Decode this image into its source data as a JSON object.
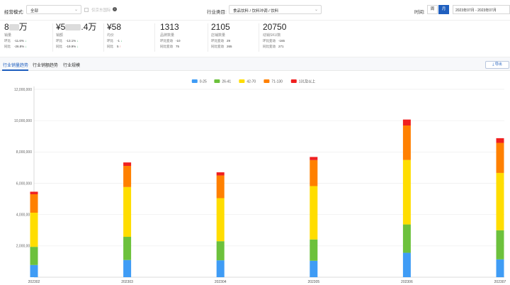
{
  "filters": {
    "mode_label": "经营模式:",
    "mode_value": "全部",
    "jd_only_label": "仅京东国际",
    "category_label": "行业类目:",
    "category_value": "食品饮料 / 饮料冲调 / 饮料",
    "time_label": "时间:",
    "week_label": "周",
    "month_label": "月",
    "date_range": "2023年07月 - 2023年07月"
  },
  "metrics": [
    {
      "value_prefix": "8",
      "value_suffix": "万",
      "label": "销量",
      "rows": [
        {
          "k": "环比",
          "v": "-11.6%",
          "dir": "down",
          "arrow": "↓"
        },
        {
          "k": "同比",
          "v": "-26.8%",
          "dir": "down",
          "arrow": "↓"
        }
      ]
    },
    {
      "value_prefix": "¥5",
      "value_suffix": ".4万",
      "label": "销额",
      "rows": [
        {
          "k": "环比",
          "v": "-13.1%",
          "dir": "down",
          "arrow": "↓"
        },
        {
          "k": "同比",
          "v": "-19.9%",
          "dir": "down",
          "arrow": "↓"
        }
      ]
    },
    {
      "value_prefix": "¥58",
      "value_suffix": "",
      "label": "均价",
      "rows": [
        {
          "k": "环比",
          "v": "-1",
          "dir": "down",
          "arrow": "↓"
        },
        {
          "k": "同比",
          "v": "5",
          "dir": "up",
          "arrow": "↑"
        }
      ]
    },
    {
      "value_prefix": "1313",
      "value_suffix": "",
      "label": "品牌数量",
      "rows": [
        {
          "k": "环比变动",
          "v": "-10",
          "dir": "",
          "arrow": ""
        },
        {
          "k": "同比变动",
          "v": "75",
          "dir": "",
          "arrow": ""
        }
      ]
    },
    {
      "value_prefix": "2105",
      "value_suffix": "",
      "label": "店铺数量",
      "rows": [
        {
          "k": "环比变动",
          "v": "29",
          "dir": "",
          "arrow": ""
        },
        {
          "k": "同比变动",
          "v": "265",
          "dir": "",
          "arrow": ""
        }
      ]
    },
    {
      "value_prefix": "20750",
      "value_suffix": "",
      "label": "动销SKU数",
      "rows": [
        {
          "k": "环比变动",
          "v": "-165",
          "dir": "",
          "arrow": ""
        },
        {
          "k": "同比变动",
          "v": "271",
          "dir": "",
          "arrow": ""
        }
      ]
    }
  ],
  "tabs": [
    "行业销量趋势",
    "行业销额趋势",
    "行业规模"
  ],
  "export_label": "导出",
  "colors": {
    "accent": "#1f5fbf",
    "price_0_25": "#3f9cf5",
    "price_26_41": "#6cc13c",
    "price_42_70": "#ffdd00",
    "price_71_130": "#ff8000",
    "price_131_plus": "#f02020"
  },
  "chart_data": {
    "type": "bar",
    "stacked": true,
    "categories": [
      "202302",
      "202303",
      "202304",
      "202305",
      "202306",
      "202307"
    ],
    "series": [
      {
        "name": "0-25",
        "color": "#3f9cf5",
        "values": [
          780000,
          1100000,
          1080000,
          1050000,
          1560000,
          1140000
        ]
      },
      {
        "name": "26-41",
        "color": "#6cc13c",
        "values": [
          1160000,
          1480000,
          1220000,
          1360000,
          1810000,
          1860000
        ]
      },
      {
        "name": "42-70",
        "color": "#ffdd00",
        "values": [
          2180000,
          3180000,
          2750000,
          3410000,
          4120000,
          3660000
        ]
      },
      {
        "name": "71-130",
        "color": "#ff8000",
        "values": [
          1180000,
          1350000,
          1450000,
          1660000,
          2200000,
          1920000
        ]
      },
      {
        "name": "131及以上",
        "color": "#f02020",
        "values": [
          160000,
          220000,
          200000,
          200000,
          380000,
          300000
        ]
      }
    ],
    "ylim": [
      0,
      12000000
    ],
    "yticks": [
      "2,000,000",
      "4,000,000",
      "6,000,000",
      "8,000,000",
      "10,000,000",
      "12,000,000"
    ],
    "ytick_values": [
      2000000,
      4000000,
      6000000,
      8000000,
      10000000,
      12000000
    ],
    "grid": true,
    "legend_position": "top-center"
  }
}
